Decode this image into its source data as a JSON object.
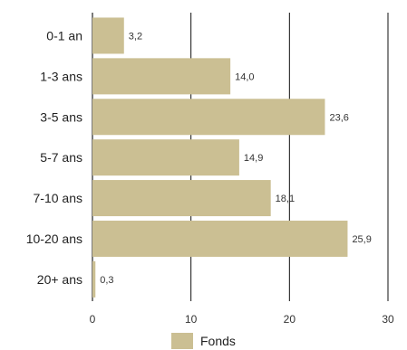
{
  "chart_data": {
    "type": "bar",
    "orientation": "horizontal",
    "categories": [
      "0-1 an",
      "1-3 ans",
      "3-5 ans",
      "5-7 ans",
      "7-10 ans",
      "10-20 ans",
      "20+ ans"
    ],
    "series": [
      {
        "name": "Fonds",
        "values": [
          3.2,
          14.0,
          23.6,
          14.9,
          18.1,
          25.9,
          0.3
        ],
        "value_labels": [
          "3,2",
          "14,0",
          "23,6",
          "14,9",
          "18,1",
          "25,9",
          "0,3"
        ],
        "color": "#cbbf93"
      }
    ],
    "xlim": [
      0,
      30
    ],
    "xticks": [
      0,
      10,
      20,
      30
    ],
    "grid": "vertical",
    "legend_position": "bottom"
  }
}
